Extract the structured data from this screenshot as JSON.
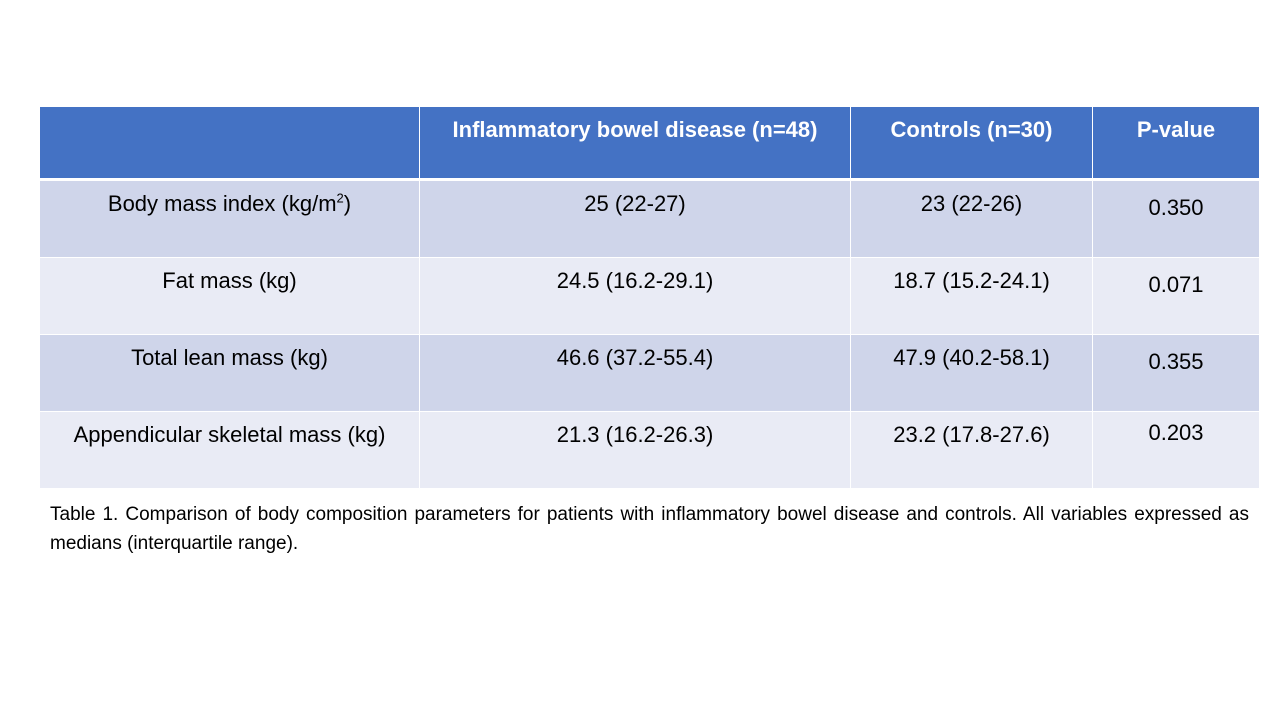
{
  "table": {
    "headers": [
      "",
      "Inflammatory bowel disease (n=48)",
      "Controls (n=30)",
      "P-value"
    ],
    "rows": [
      {
        "label": "Body mass index (kg/m",
        "label_sup": "2",
        "label_suffix": ")",
        "ibd": "25 (22-27)",
        "controls": "23 (22-26)",
        "p": "0.350"
      },
      {
        "label": "Fat mass (kg)",
        "label_sup": "",
        "label_suffix": "",
        "ibd": "24.5 (16.2-29.1)",
        "controls": "18.7 (15.2-24.1)",
        "p": "0.071"
      },
      {
        "label": "Total lean mass (kg)",
        "label_sup": "",
        "label_suffix": "",
        "ibd": "46.6 (37.2-55.4)",
        "controls": "47.9 (40.2-58.1)",
        "p": "0.355"
      },
      {
        "label": "Appendicular skeletal mass (kg)",
        "label_sup": "",
        "label_suffix": "",
        "ibd": "21.3 (16.2-26.3)",
        "controls": "23.2 (17.8-27.6)",
        "p": "0.203"
      }
    ]
  },
  "caption": "Table 1. Comparison of body composition parameters for patients with inflammatory bowel disease and controls. All variables expressed as medians (interquartile range).",
  "colors": {
    "header_bg": "#4472c4",
    "row_dark": "#cfd5ea",
    "row_light": "#e9ebf5"
  }
}
